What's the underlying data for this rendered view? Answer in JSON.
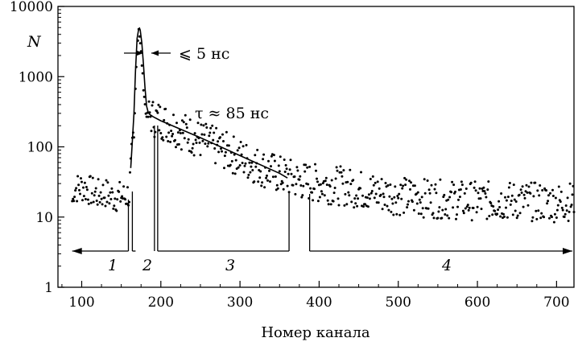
{
  "chart_data": {
    "type": "scatter",
    "title": "",
    "xlabel": "Номер канала",
    "ylabel": "N",
    "y_scale": "log",
    "xlim": [
      70,
      722
    ],
    "ylim": [
      1,
      10000
    ],
    "x_ticks": [
      100,
      200,
      300,
      400,
      500,
      600,
      700
    ],
    "y_ticks": [
      1,
      10,
      100,
      1000,
      10000
    ],
    "x_tick_labels": [
      "100",
      "200",
      "300",
      "400",
      "500",
      "600",
      "700"
    ],
    "y_tick_labels": [
      "1",
      "10",
      "100",
      "1000",
      "10000"
    ],
    "grid": false,
    "legend": "none",
    "annotations": {
      "peak_width": "⩽ 5 нс",
      "decay_time": "τ ≈ 85 нс"
    },
    "regions": [
      {
        "label": "1",
        "x_start": 88,
        "x_end": 159,
        "arrow": "left"
      },
      {
        "label": "2",
        "x_start": 164,
        "x_end": 196,
        "arrow": "none"
      },
      {
        "label": "3",
        "x_start": 196,
        "x_end": 362,
        "arrow": "none"
      },
      {
        "label": "4",
        "x_start": 388,
        "x_end": 722,
        "arrow": "right"
      }
    ],
    "series": [
      {
        "type": "scatter",
        "x": [
          90,
          100,
          110,
          120,
          130,
          140,
          150,
          155,
          160,
          163,
          166,
          169,
          172,
          175,
          178,
          181,
          184,
          187,
          190,
          200,
          225,
          250,
          275,
          300,
          325,
          350,
          360,
          375,
          400,
          425,
          450,
          475,
          500,
          550,
          600,
          650,
          700,
          720
        ],
        "y": [
          25,
          27,
          24,
          21,
          22,
          19,
          20,
          19,
          22,
          60,
          130,
          1500,
          5000,
          2200,
          700,
          300,
          270,
          280,
          260,
          240,
          175,
          125,
          95,
          70,
          52,
          40,
          37,
          33,
          30,
          28,
          25,
          22,
          20,
          18,
          17,
          17,
          16,
          17
        ]
      },
      {
        "type": "line",
        "x": [
          162,
          164,
          166,
          168,
          170,
          172,
          173,
          174,
          176,
          178,
          180,
          182,
          184,
          186,
          188,
          190,
          200,
          250,
          300,
          350,
          360
        ],
        "y": [
          50,
          120,
          300,
          1200,
          3500,
          4800,
          4900,
          4600,
          3000,
          1500,
          700,
          380,
          310,
          290,
          280,
          270,
          235,
          135,
          75,
          42,
          36
        ]
      }
    ]
  }
}
